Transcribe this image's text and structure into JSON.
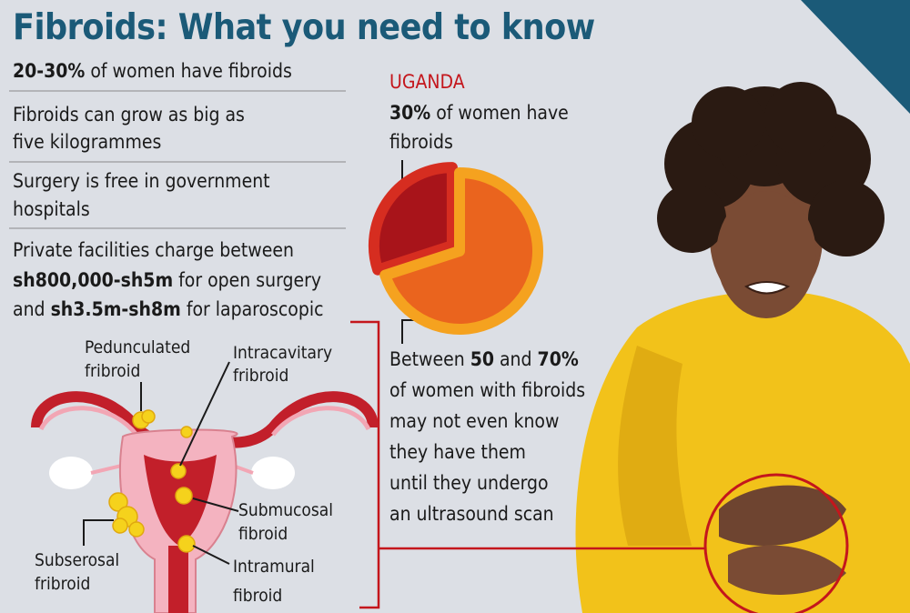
{
  "title": "Fibroids: What you need to know",
  "facts": [
    {
      "bold": "20-30%",
      "text": "of women have fibroids"
    },
    {
      "lines": [
        "Fibroids can grow as big as",
        "five kilogrammes"
      ]
    },
    {
      "lines": [
        "Surgery is free in government",
        "hospitals"
      ]
    },
    {
      "intro": "Private facilities charge between",
      "range_open": "sh800,000-sh5m",
      "open": "for open surgery",
      "and": "and",
      "range_lap": "sh3.5m-sh8m",
      "lap": "for laparoscopic"
    }
  ],
  "uganda": {
    "label": "UGANDA",
    "stat": "30%",
    "lines": [
      "of women have",
      "fibroids"
    ],
    "pie": {
      "values": [
        30,
        70
      ],
      "colors": [
        "#a8141a",
        "#ea641e"
      ],
      "rims": [
        "#d62d20",
        "#f5a21f"
      ]
    }
  },
  "unaware": {
    "between": "Between",
    "low": "50",
    "and": "and",
    "high": "70%",
    "lines": [
      "of women with fibroids",
      "may not even know",
      "they have them",
      "until they undergo",
      "an ultrasound scan"
    ]
  },
  "diagram": {
    "labels": [
      {
        "name": "Pedunculated",
        "kind": "fribroid"
      },
      {
        "name": "Intracavitary",
        "kind": "fribroid"
      },
      {
        "name": "Submucosal",
        "kind": "fibroid"
      },
      {
        "name": "Subserosal",
        "kind": "fribroid"
      },
      {
        "name": "Intramural",
        "kind": "fibroid"
      }
    ]
  }
}
